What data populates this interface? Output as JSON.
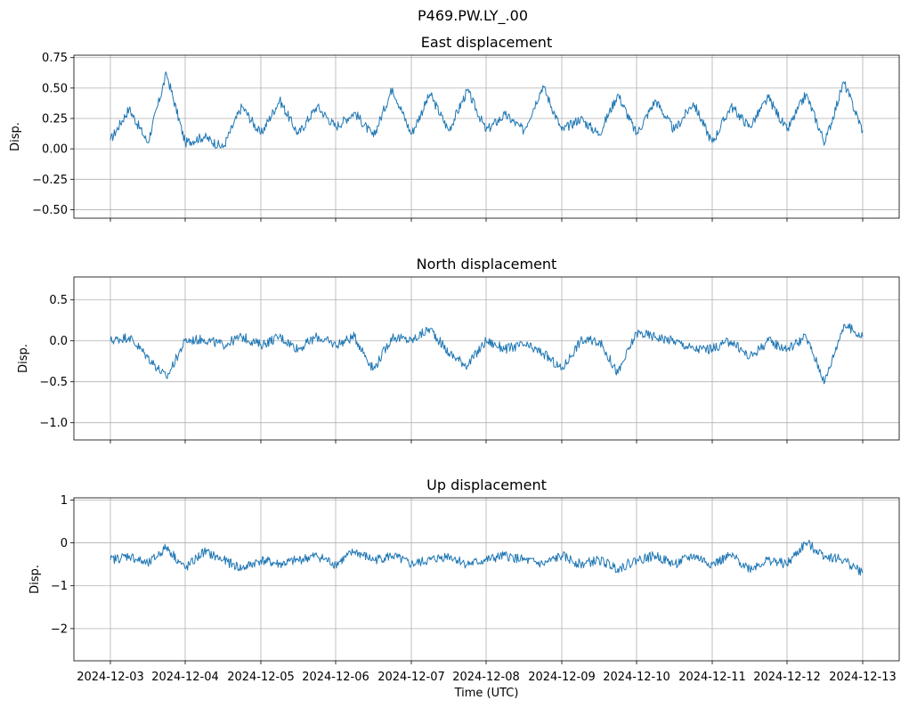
{
  "suptitle": "P469.PW.LY_.00",
  "chart_data": [
    {
      "type": "line",
      "title": "East displacement",
      "xlabel": "",
      "ylabel": "Disp.",
      "xlim": [
        "2024-12-03",
        "2024-12-13"
      ],
      "ylim": [
        -0.57,
        0.77
      ],
      "yticks": [
        0.75,
        0.5,
        0.25,
        0.0,
        -0.25,
        -0.5
      ],
      "ytick_labels": [
        "0.75",
        "0.50",
        "0.25",
        "0.00",
        "−0.25",
        "−0.50"
      ],
      "grid": true,
      "series": [
        {
          "color": "#1f77b4",
          "x": [
            "2024-12-03 00:00",
            "2024-12-03 06:00",
            "2024-12-03 12:00",
            "2024-12-03 18:00",
            "2024-12-04 00:00",
            "2024-12-04 06:00",
            "2024-12-04 12:00",
            "2024-12-04 18:00",
            "2024-12-05 00:00",
            "2024-12-05 06:00",
            "2024-12-05 12:00",
            "2024-12-05 18:00",
            "2024-12-06 00:00",
            "2024-12-06 06:00",
            "2024-12-06 12:00",
            "2024-12-06 18:00",
            "2024-12-07 00:00",
            "2024-12-07 06:00",
            "2024-12-07 12:00",
            "2024-12-07 18:00",
            "2024-12-08 00:00",
            "2024-12-08 06:00",
            "2024-12-08 12:00",
            "2024-12-08 18:00",
            "2024-12-09 00:00",
            "2024-12-09 06:00",
            "2024-12-09 12:00",
            "2024-12-09 18:00",
            "2024-12-10 00:00",
            "2024-12-10 06:00",
            "2024-12-10 12:00",
            "2024-12-10 18:00",
            "2024-12-11 00:00",
            "2024-12-11 06:00",
            "2024-12-11 12:00",
            "2024-12-11 18:00",
            "2024-12-12 00:00",
            "2024-12-12 06:00",
            "2024-12-12 12:00",
            "2024-12-12 18:00",
            "2024-12-13 00:00"
          ],
          "y": [
            0.07,
            0.33,
            0.05,
            0.62,
            0.05,
            0.1,
            0.01,
            0.35,
            0.12,
            0.4,
            0.12,
            0.35,
            0.18,
            0.3,
            0.1,
            0.5,
            0.12,
            0.45,
            0.15,
            0.48,
            0.15,
            0.28,
            0.15,
            0.52,
            0.15,
            0.25,
            0.12,
            0.45,
            0.12,
            0.4,
            0.15,
            0.38,
            0.05,
            0.35,
            0.18,
            0.42,
            0.15,
            0.45,
            0.05,
            0.55,
            0.15
          ]
        }
      ]
    },
    {
      "type": "line",
      "title": "North displacement",
      "xlabel": "",
      "ylabel": "Disp.",
      "xlim": [
        "2024-12-03",
        "2024-12-13"
      ],
      "ylim": [
        -1.21,
        0.78
      ],
      "yticks": [
        0.5,
        0.0,
        -0.5,
        -1.0
      ],
      "ytick_labels": [
        "0.5",
        "0.0",
        "−0.5",
        "−1.0"
      ],
      "grid": true,
      "series": [
        {
          "color": "#1f77b4",
          "x": [
            "2024-12-03 00:00",
            "2024-12-03 06:00",
            "2024-12-03 12:00",
            "2024-12-03 18:00",
            "2024-12-04 00:00",
            "2024-12-04 06:00",
            "2024-12-04 12:00",
            "2024-12-04 18:00",
            "2024-12-05 00:00",
            "2024-12-05 06:00",
            "2024-12-05 12:00",
            "2024-12-05 18:00",
            "2024-12-06 00:00",
            "2024-12-06 06:00",
            "2024-12-06 12:00",
            "2024-12-06 18:00",
            "2024-12-07 00:00",
            "2024-12-07 06:00",
            "2024-12-07 12:00",
            "2024-12-07 18:00",
            "2024-12-08 00:00",
            "2024-12-08 06:00",
            "2024-12-08 12:00",
            "2024-12-08 18:00",
            "2024-12-09 00:00",
            "2024-12-09 06:00",
            "2024-12-09 12:00",
            "2024-12-09 18:00",
            "2024-12-10 00:00",
            "2024-12-10 06:00",
            "2024-12-10 12:00",
            "2024-12-10 18:00",
            "2024-12-11 00:00",
            "2024-12-11 06:00",
            "2024-12-11 12:00",
            "2024-12-11 18:00",
            "2024-12-12 00:00",
            "2024-12-12 06:00",
            "2024-12-12 12:00",
            "2024-12-12 18:00",
            "2024-12-13 00:00"
          ],
          "y": [
            0.0,
            0.05,
            -0.2,
            -0.45,
            0.0,
            0.02,
            -0.05,
            0.05,
            -0.05,
            0.05,
            -0.1,
            0.05,
            -0.05,
            0.05,
            -0.35,
            0.05,
            0.0,
            0.15,
            -0.15,
            -0.3,
            0.0,
            -0.1,
            -0.05,
            -0.15,
            -0.35,
            0.0,
            0.0,
            -0.4,
            0.1,
            0.05,
            0.0,
            -0.1,
            -0.1,
            0.0,
            -0.2,
            0.0,
            -0.1,
            0.05,
            -0.5,
            0.2,
            0.05
          ]
        }
      ]
    },
    {
      "type": "line",
      "title": "Up displacement",
      "xlabel": "Time (UTC)",
      "ylabel": "Disp.",
      "xlim": [
        "2024-12-03",
        "2024-12-13"
      ],
      "ylim": [
        -2.75,
        1.05
      ],
      "yticks": [
        1,
        0,
        -1,
        -2
      ],
      "ytick_labels": [
        "1",
        "0",
        "−1",
        "−2"
      ],
      "xtick_labels": [
        "2024-12-03",
        "2024-12-04",
        "2024-12-05",
        "2024-12-06",
        "2024-12-07",
        "2024-12-08",
        "2024-12-09",
        "2024-12-10",
        "2024-12-11",
        "2024-12-12",
        "2024-12-13"
      ],
      "grid": true,
      "series": [
        {
          "color": "#1f77b4",
          "x": [
            "2024-12-03 00:00",
            "2024-12-03 06:00",
            "2024-12-03 12:00",
            "2024-12-03 18:00",
            "2024-12-04 00:00",
            "2024-12-04 06:00",
            "2024-12-04 12:00",
            "2024-12-04 18:00",
            "2024-12-05 00:00",
            "2024-12-05 06:00",
            "2024-12-05 12:00",
            "2024-12-05 18:00",
            "2024-12-06 00:00",
            "2024-12-06 06:00",
            "2024-12-06 12:00",
            "2024-12-06 18:00",
            "2024-12-07 00:00",
            "2024-12-07 06:00",
            "2024-12-07 12:00",
            "2024-12-07 18:00",
            "2024-12-08 00:00",
            "2024-12-08 06:00",
            "2024-12-08 12:00",
            "2024-12-08 18:00",
            "2024-12-09 00:00",
            "2024-12-09 06:00",
            "2024-12-09 12:00",
            "2024-12-09 18:00",
            "2024-12-10 00:00",
            "2024-12-10 06:00",
            "2024-12-10 12:00",
            "2024-12-10 18:00",
            "2024-12-11 00:00",
            "2024-12-11 06:00",
            "2024-12-11 12:00",
            "2024-12-11 18:00",
            "2024-12-12 00:00",
            "2024-12-12 06:00",
            "2024-12-12 12:00",
            "2024-12-12 18:00",
            "2024-12-13 00:00"
          ],
          "y": [
            -0.4,
            -0.3,
            -0.5,
            -0.1,
            -0.6,
            -0.2,
            -0.4,
            -0.6,
            -0.4,
            -0.5,
            -0.4,
            -0.3,
            -0.5,
            -0.2,
            -0.4,
            -0.3,
            -0.5,
            -0.4,
            -0.3,
            -0.5,
            -0.4,
            -0.3,
            -0.4,
            -0.5,
            -0.3,
            -0.5,
            -0.4,
            -0.6,
            -0.4,
            -0.3,
            -0.5,
            -0.3,
            -0.5,
            -0.3,
            -0.6,
            -0.4,
            -0.5,
            0.0,
            -0.3,
            -0.4,
            -0.7
          ]
        }
      ]
    }
  ]
}
